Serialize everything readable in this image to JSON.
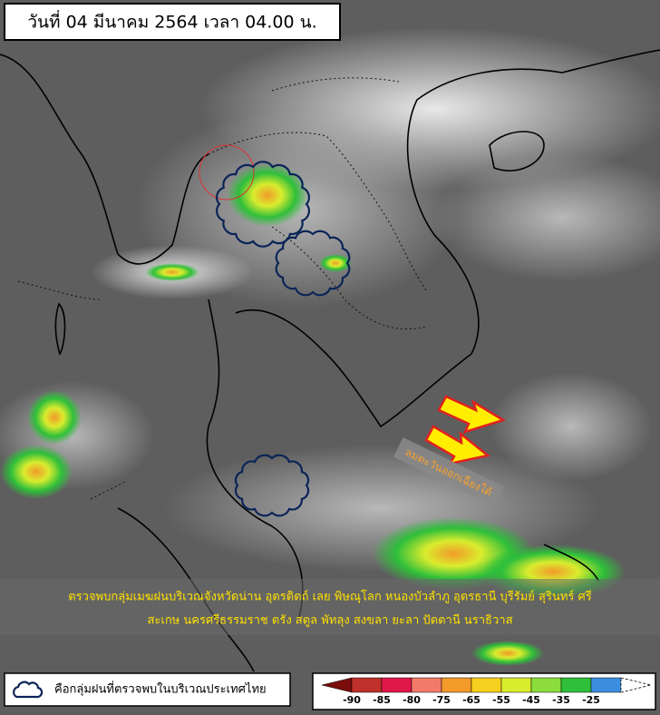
{
  "header": {
    "title": "วันที่ 04 มีนาคม 2564 เวลา 04.00 น."
  },
  "annotation": {
    "wind": "ลมตะวันออกเฉียงใต้"
  },
  "caption": {
    "lines": [
      "ตรวจพบกลุ่มเมฆฝนบริเวณจังหวัดน่าน อุตรดิตถ์ เลย พิษณุโลก หนองบัวลำภู อุดรธานี บุรีรัมย์ สุรินทร์ ศรี",
      "สะเกษ นครศรีธรรมราช ตรัง สตูล พัทลุง สงขลา ยะลา ปัตตานี นราธิวาส"
    ]
  },
  "legend": {
    "label": "คือกลุ่มฝนที่ตรวจพบในบริเวณประเทศไทย"
  },
  "scale": {
    "ticks": [
      -90,
      -85,
      -80,
      -75,
      -65,
      -55,
      -45,
      -35,
      -25
    ],
    "colors": [
      "#7a0c0c",
      "#c0302a",
      "#e0184a",
      "#f27a6a",
      "#f29a2a",
      "#f7cf1e",
      "#d9ec2e",
      "#8bdc3c",
      "#2fbf3a",
      "#3c8fe0",
      "#ffffff"
    ]
  }
}
